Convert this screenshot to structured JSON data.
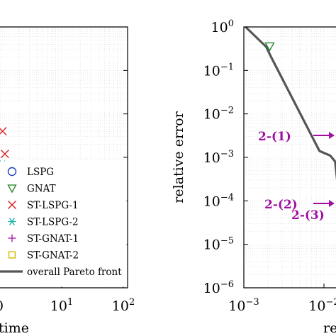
{
  "chart_data": [
    {
      "type": "scatter",
      "xscale": "log",
      "yscale": "log",
      "xlim": [
        1,
        100
      ],
      "ylim": [
        1e-06,
        1
      ],
      "grid": true,
      "xlabel": "time",
      "ylabel": "",
      "x_ticks": [
        {
          "value": 10,
          "base": "10",
          "exp": "1"
        },
        {
          "value": 100,
          "base": "10",
          "exp": "2"
        }
      ],
      "legend": {
        "placement": "bottom-right",
        "entries": [
          {
            "label": "LSPG",
            "marker": "circle",
            "color": "#1f3fbf"
          },
          {
            "label": "GNAT",
            "marker": "triangle-down",
            "color": "#2a8a2a"
          },
          {
            "label": "ST-LSPG-1",
            "marker": "x",
            "color": "#d62020"
          },
          {
            "label": "ST-LSPG-2",
            "marker": "asterisk",
            "color": "#20b2aa"
          },
          {
            "label": "ST-GNAT-1",
            "marker": "plus",
            "color": "#b020b0"
          },
          {
            "label": "ST-GNAT-2",
            "marker": "square",
            "color": "#d4b800"
          },
          {
            "label": "overall Pareto front",
            "marker": "line",
            "color": "#555555"
          }
        ]
      },
      "series": [
        {
          "name": "ST-LSPG-1",
          "marker": "x",
          "color": "#d62020",
          "points": [
            {
              "x": 1.1,
              "y": 0.004
            },
            {
              "x": 1.2,
              "y": 0.0012
            }
          ]
        },
        {
          "name": "ST-LSPG-2",
          "marker": "asterisk",
          "color": "#20b2aa",
          "points": [
            {
              "x": 1.1,
              "y": 0.0007
            },
            {
              "x": 1.6,
              "y": 0.00052
            },
            {
              "x": 2.1,
              "y": 0.00047
            }
          ]
        },
        {
          "name": "LSPG",
          "marker": "circle",
          "color": "#1f3fbf",
          "points": [
            {
              "x": 1.0,
              "y": 6e-06
            }
          ]
        }
      ]
    },
    {
      "type": "line",
      "xscale": "log",
      "yscale": "log",
      "xlim": [
        0.001,
        0.1
      ],
      "ylim": [
        1e-06,
        1
      ],
      "grid": true,
      "ylabel": "relative error",
      "xlabel": "re",
      "x_ticks": [
        {
          "value": 0.001,
          "base": "10",
          "exp": "−3"
        },
        {
          "value": 0.01,
          "base": "10",
          "exp": "−2"
        }
      ],
      "y_ticks": [
        {
          "value": 1,
          "base": "10",
          "exp": "0"
        },
        {
          "value": 0.1,
          "base": "10",
          "exp": "−1"
        },
        {
          "value": 0.01,
          "base": "10",
          "exp": "−2"
        },
        {
          "value": 0.001,
          "base": "10",
          "exp": "−3"
        },
        {
          "value": 0.0001,
          "base": "10",
          "exp": "−4"
        },
        {
          "value": 1e-05,
          "base": "10",
          "exp": "−5"
        },
        {
          "value": 1e-06,
          "base": "10",
          "exp": "−6"
        }
      ],
      "pareto_front": {
        "name": "overall Pareto front",
        "color": "#555555",
        "x": [
          0.00105,
          0.0019,
          0.0022,
          0.0088,
          0.012,
          0.0138,
          0.016
        ],
        "y": [
          1,
          0.35,
          0.2,
          0.0014,
          0.0011,
          0.0008,
          6e-05
        ]
      },
      "markers": [
        {
          "name": "GNAT",
          "marker": "triangle-down",
          "color": "#2a8a2a",
          "x": 0.0021,
          "y": 0.36
        }
      ],
      "annotations": [
        {
          "text": "2-(1)",
          "x": 0.0125,
          "y": 0.001
        },
        {
          "text": "2-(2)",
          "x": 0.016,
          "y": 8e-05
        },
        {
          "text": "2-(3)",
          "x": 0.016,
          "y": 4e-05
        }
      ]
    }
  ]
}
